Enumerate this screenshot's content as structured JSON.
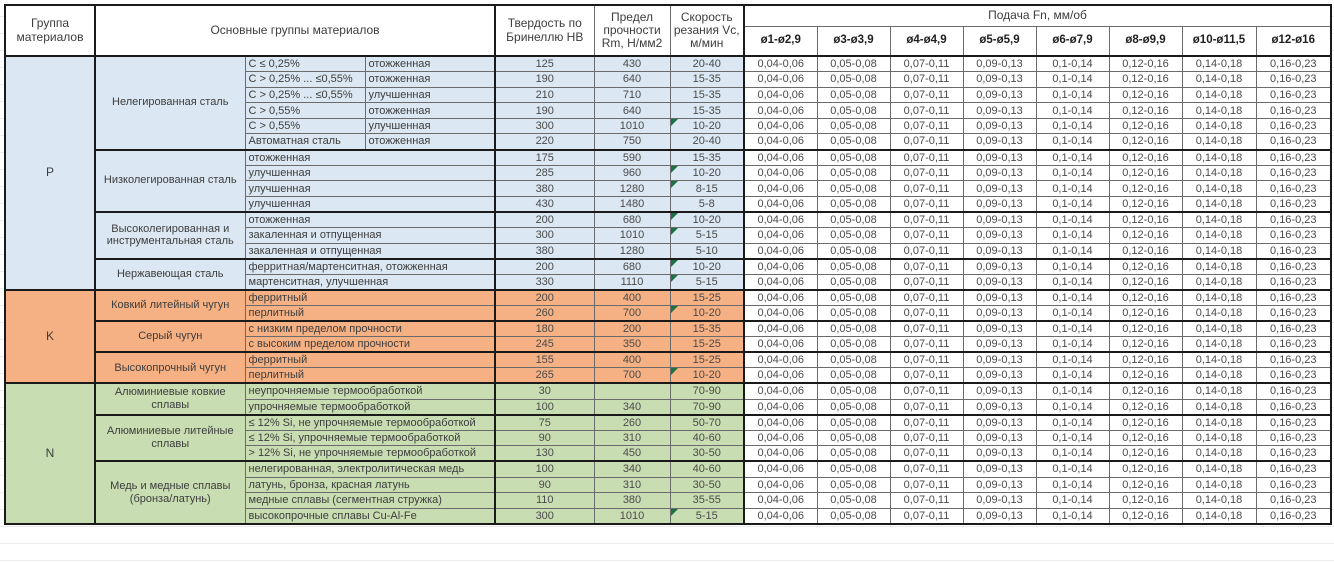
{
  "header": {
    "col_group": "Группа материалов",
    "col_main": "Основные группы материалов",
    "col_hb": "Твердость по Бринеллю НВ",
    "col_rm": "Предел прочности Rm, Н/мм2",
    "col_vc": "Скорость резания Vc, м/мин",
    "feed_title": "Подача Fn, мм/об",
    "feed_cols": [
      "ø1-ø2,9",
      "ø3-ø3,9",
      "ø4-ø4,9",
      "ø5-ø5,9",
      "ø6-ø7,9",
      "ø8-ø9,9",
      "ø10-ø11,5",
      "ø12-ø16"
    ]
  },
  "feed_values": [
    "0,04-0,06",
    "0,05-0,08",
    "0,07-0,11",
    "0,09-0,13",
    "0,1-0,14",
    "0,12-0,16",
    "0,14-0,18",
    "0,16-0,23"
  ],
  "colors": {
    "p_section": "#dbe7f2",
    "k_section": "#f5b183",
    "n_section": "#c9ddb2",
    "error_marker": "#1e7145"
  },
  "groups": [
    {
      "letter": "P",
      "color": "#dbe7f2",
      "families": [
        {
          "name": "Нелегированная сталь",
          "rows": [
            {
              "sub1": "C ≤ 0,25%",
              "sub2": "отожженная",
              "hb": "125",
              "rm": "430",
              "vc": "20-40"
            },
            {
              "sub1": "C > 0,25% ... ≤0,55%",
              "sub2": "отожженная",
              "hb": "190",
              "rm": "640",
              "vc": "15-35"
            },
            {
              "sub1": "C > 0,25% ... ≤0,55%",
              "sub2": "улучшенная",
              "hb": "210",
              "rm": "710",
              "vc": "15-35"
            },
            {
              "sub1": "C > 0,55%",
              "sub2": "отожженная",
              "hb": "190",
              "rm": "640",
              "vc": "15-35"
            },
            {
              "sub1": "C > 0,55%",
              "sub2": "улучшенная",
              "hb": "300",
              "rm": "1010",
              "vc": "10-20",
              "flag": true
            },
            {
              "sub1": "Автоматная сталь",
              "sub2": "отожженная",
              "hb": "220",
              "rm": "750",
              "vc": "20-40"
            }
          ]
        },
        {
          "name": "Низколегированная сталь",
          "rows": [
            {
              "sub1": "отожженная",
              "hb": "175",
              "rm": "590",
              "vc": "15-35"
            },
            {
              "sub1": "улучшенная",
              "hb": "285",
              "rm": "960",
              "vc": "10-20",
              "flag": true
            },
            {
              "sub1": "улучшенная",
              "hb": "380",
              "rm": "1280",
              "vc": "8-15",
              "flag": true
            },
            {
              "sub1": "улучшенная",
              "hb": "430",
              "rm": "1480",
              "vc": "5-8"
            }
          ]
        },
        {
          "name": "Высоколегированная и инструментальная сталь",
          "rows": [
            {
              "sub1": "отожженная",
              "hb": "200",
              "rm": "680",
              "vc": "10-20",
              "flag": true
            },
            {
              "sub1": "закаленная и отпущенная",
              "hb": "300",
              "rm": "1010",
              "vc": "5-15",
              "flag": true
            },
            {
              "sub1": "закаленная и отпущенная",
              "hb": "380",
              "rm": "1280",
              "vc": "5-10"
            }
          ]
        },
        {
          "name": "Нержавеющая сталь",
          "rows": [
            {
              "sub1": "ферритная/мартенситная, отожженная",
              "hb": "200",
              "rm": "680",
              "vc": "10-20",
              "flag": true
            },
            {
              "sub1": "мартенситная, улучшенная",
              "hb": "330",
              "rm": "1110",
              "vc": "5-15",
              "flag": true
            }
          ]
        }
      ]
    },
    {
      "letter": "K",
      "color": "#f5b183",
      "families": [
        {
          "name": "Ковкий литейный чугун",
          "rows": [
            {
              "sub1": "ферритный",
              "hb": "200",
              "rm": "400",
              "vc": "15-25"
            },
            {
              "sub1": "перлитный",
              "hb": "260",
              "rm": "700",
              "vc": "10-20",
              "flag": true
            }
          ]
        },
        {
          "name": "Серый чугун",
          "rows": [
            {
              "sub1": "с низким пределом прочности",
              "hb": "180",
              "rm": "200",
              "vc": "15-35"
            },
            {
              "sub1": "с высоким пределом прочности",
              "hb": "245",
              "rm": "350",
              "vc": "15-25"
            }
          ]
        },
        {
          "name": "Высокопрочный чугун",
          "rows": [
            {
              "sub1": "ферритный",
              "hb": "155",
              "rm": "400",
              "vc": "15-25"
            },
            {
              "sub1": "перлитный",
              "hb": "265",
              "rm": "700",
              "vc": "10-20",
              "flag": true
            }
          ]
        }
      ]
    },
    {
      "letter": "N",
      "color": "#c9ddb2",
      "families": [
        {
          "name": "Алюминиевые ковкие сплавы",
          "rows": [
            {
              "sub1": "неупрочняемые термообработкой",
              "hb": "30",
              "rm": "",
              "vc": "70-90"
            },
            {
              "sub1": "упрочняемые термообработкой",
              "hb": "100",
              "rm": "340",
              "vc": "70-90"
            }
          ]
        },
        {
          "name": "Алюминиевые литейные сплавы",
          "rows": [
            {
              "sub1": "≤ 12% Si, не упрочняемые термообработкой",
              "hb": "75",
              "rm": "260",
              "vc": "50-70"
            },
            {
              "sub1": "≤ 12% Si, упрочняемые термообработкой",
              "hb": "90",
              "rm": "310",
              "vc": "40-60"
            },
            {
              "sub1": "> 12% Si, не упрочняемые термообработкой",
              "hb": "130",
              "rm": "450",
              "vc": "30-50"
            }
          ]
        },
        {
          "name": "Медь и медные сплавы (бронза/латунь)",
          "rows": [
            {
              "sub1": "нелегированная, электролитическая медь",
              "hb": "100",
              "rm": "340",
              "vc": "40-60"
            },
            {
              "sub1": "латунь, бронза, красная латунь",
              "hb": "90",
              "rm": "310",
              "vc": "30-50"
            },
            {
              "sub1": "медные сплавы (сегментная стружка)",
              "hb": "110",
              "rm": "380",
              "vc": "35-55"
            },
            {
              "sub1": "высокопрочные сплавы Cu-Al-Fe",
              "hb": "300",
              "rm": "1010",
              "vc": "5-15",
              "flag": true
            }
          ]
        }
      ]
    }
  ]
}
